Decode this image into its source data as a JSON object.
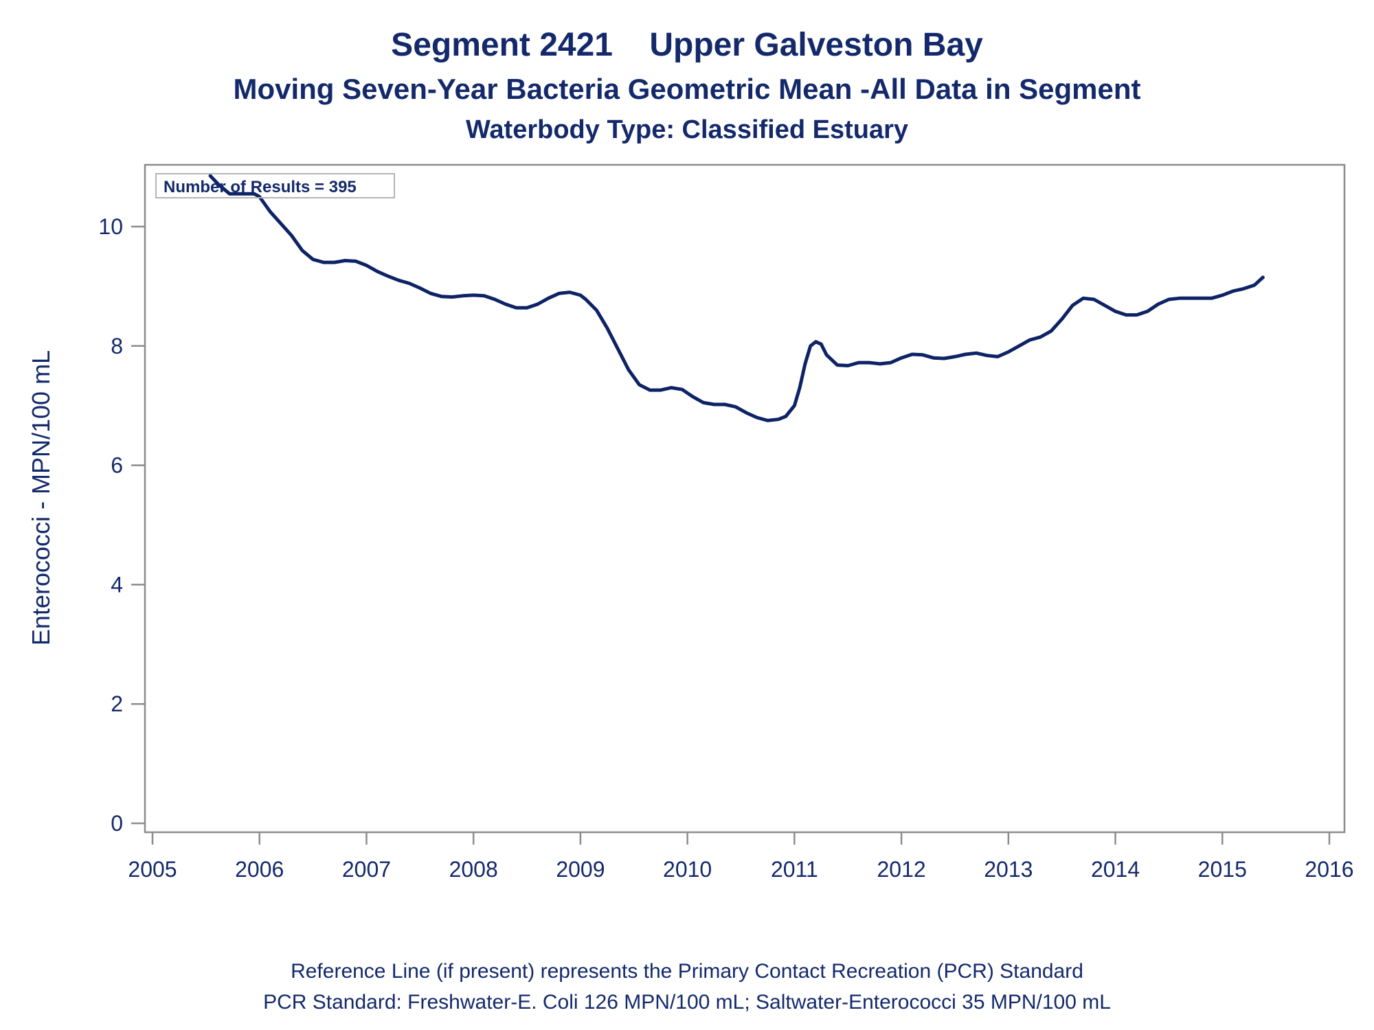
{
  "title": "Segment 2421    Upper Galveston Bay",
  "subtitle": "Moving Seven-Year Bacteria Geometric Mean -All Data in Segment",
  "subtitle2": "Waterbody Type: Classified Estuary",
  "footnotes": [
    "Reference Line (if present) represents the Primary Contact Recreation (PCR) Standard",
    "PCR Standard: Freshwater-E. Coli 126 MPN/100 mL; Saltwater-Enterococci 35 MPN/100 mL"
  ],
  "colors": {
    "text": "#13296b",
    "line": "#0d2366",
    "axis": "#8c8c8c"
  },
  "chart_data": {
    "type": "line",
    "ylabel": "Enterococci - MPN/100 mL",
    "xlabel": "",
    "xlim": [
      2005,
      2016
    ],
    "ylim": [
      0,
      11
    ],
    "x_ticks": [
      2005,
      2006,
      2007,
      2008,
      2009,
      2010,
      2011,
      2012,
      2013,
      2014,
      2015,
      2016
    ],
    "y_ticks": [
      0,
      2,
      4,
      6,
      8,
      10
    ],
    "grid": false,
    "annotation": "Number of Results = 395",
    "series": [
      {
        "x": [
          2005.54,
          2005.62,
          2005.72,
          2005.85,
          2005.95,
          2006.0,
          2006.1,
          2006.2,
          2006.3,
          2006.4,
          2006.5,
          2006.6,
          2006.7,
          2006.8,
          2006.9,
          2007.0,
          2007.1,
          2007.2,
          2007.3,
          2007.4,
          2007.5,
          2007.6,
          2007.7,
          2007.8,
          2007.9,
          2008.0,
          2008.1,
          2008.2,
          2008.3,
          2008.4,
          2008.5,
          2008.6,
          2008.7,
          2008.8,
          2008.9,
          2009.0,
          2009.05,
          2009.15,
          2009.25,
          2009.35,
          2009.45,
          2009.55,
          2009.65,
          2009.75,
          2009.85,
          2009.95,
          2010.05,
          2010.15,
          2010.25,
          2010.35,
          2010.45,
          2010.55,
          2010.65,
          2010.75,
          2010.85,
          2010.92,
          2011.0,
          2011.05,
          2011.1,
          2011.15,
          2011.2,
          2011.25,
          2011.3,
          2011.4,
          2011.5,
          2011.6,
          2011.7,
          2011.8,
          2011.9,
          2012.0,
          2012.1,
          2012.2,
          2012.3,
          2012.4,
          2012.5,
          2012.6,
          2012.7,
          2012.8,
          2012.9,
          2013.0,
          2013.1,
          2013.2,
          2013.3,
          2013.4,
          2013.5,
          2013.6,
          2013.7,
          2013.8,
          2013.9,
          2014.0,
          2014.1,
          2014.2,
          2014.3,
          2014.4,
          2014.5,
          2014.6,
          2014.7,
          2014.8,
          2014.9,
          2015.0,
          2015.1,
          2015.2,
          2015.3,
          2015.38
        ],
        "y": [
          10.85,
          10.7,
          10.55,
          10.55,
          10.55,
          10.5,
          10.25,
          10.05,
          9.85,
          9.6,
          9.45,
          9.4,
          9.4,
          9.43,
          9.42,
          9.35,
          9.25,
          9.17,
          9.1,
          9.05,
          8.97,
          8.88,
          8.83,
          8.82,
          8.84,
          8.85,
          8.84,
          8.78,
          8.7,
          8.64,
          8.64,
          8.7,
          8.8,
          8.88,
          8.9,
          8.85,
          8.78,
          8.6,
          8.3,
          7.95,
          7.6,
          7.35,
          7.26,
          7.26,
          7.3,
          7.27,
          7.15,
          7.05,
          7.02,
          7.02,
          6.98,
          6.88,
          6.8,
          6.75,
          6.77,
          6.82,
          7.0,
          7.3,
          7.7,
          8.0,
          8.07,
          8.03,
          7.85,
          7.68,
          7.67,
          7.72,
          7.72,
          7.7,
          7.72,
          7.8,
          7.86,
          7.85,
          7.8,
          7.79,
          7.82,
          7.86,
          7.88,
          7.84,
          7.82,
          7.9,
          8.0,
          8.1,
          8.15,
          8.25,
          8.45,
          8.68,
          8.8,
          8.78,
          8.68,
          8.58,
          8.52,
          8.52,
          8.58,
          8.7,
          8.78,
          8.8,
          8.8,
          8.8,
          8.8,
          8.85,
          8.92,
          8.96,
          9.02,
          9.15
        ]
      }
    ]
  }
}
